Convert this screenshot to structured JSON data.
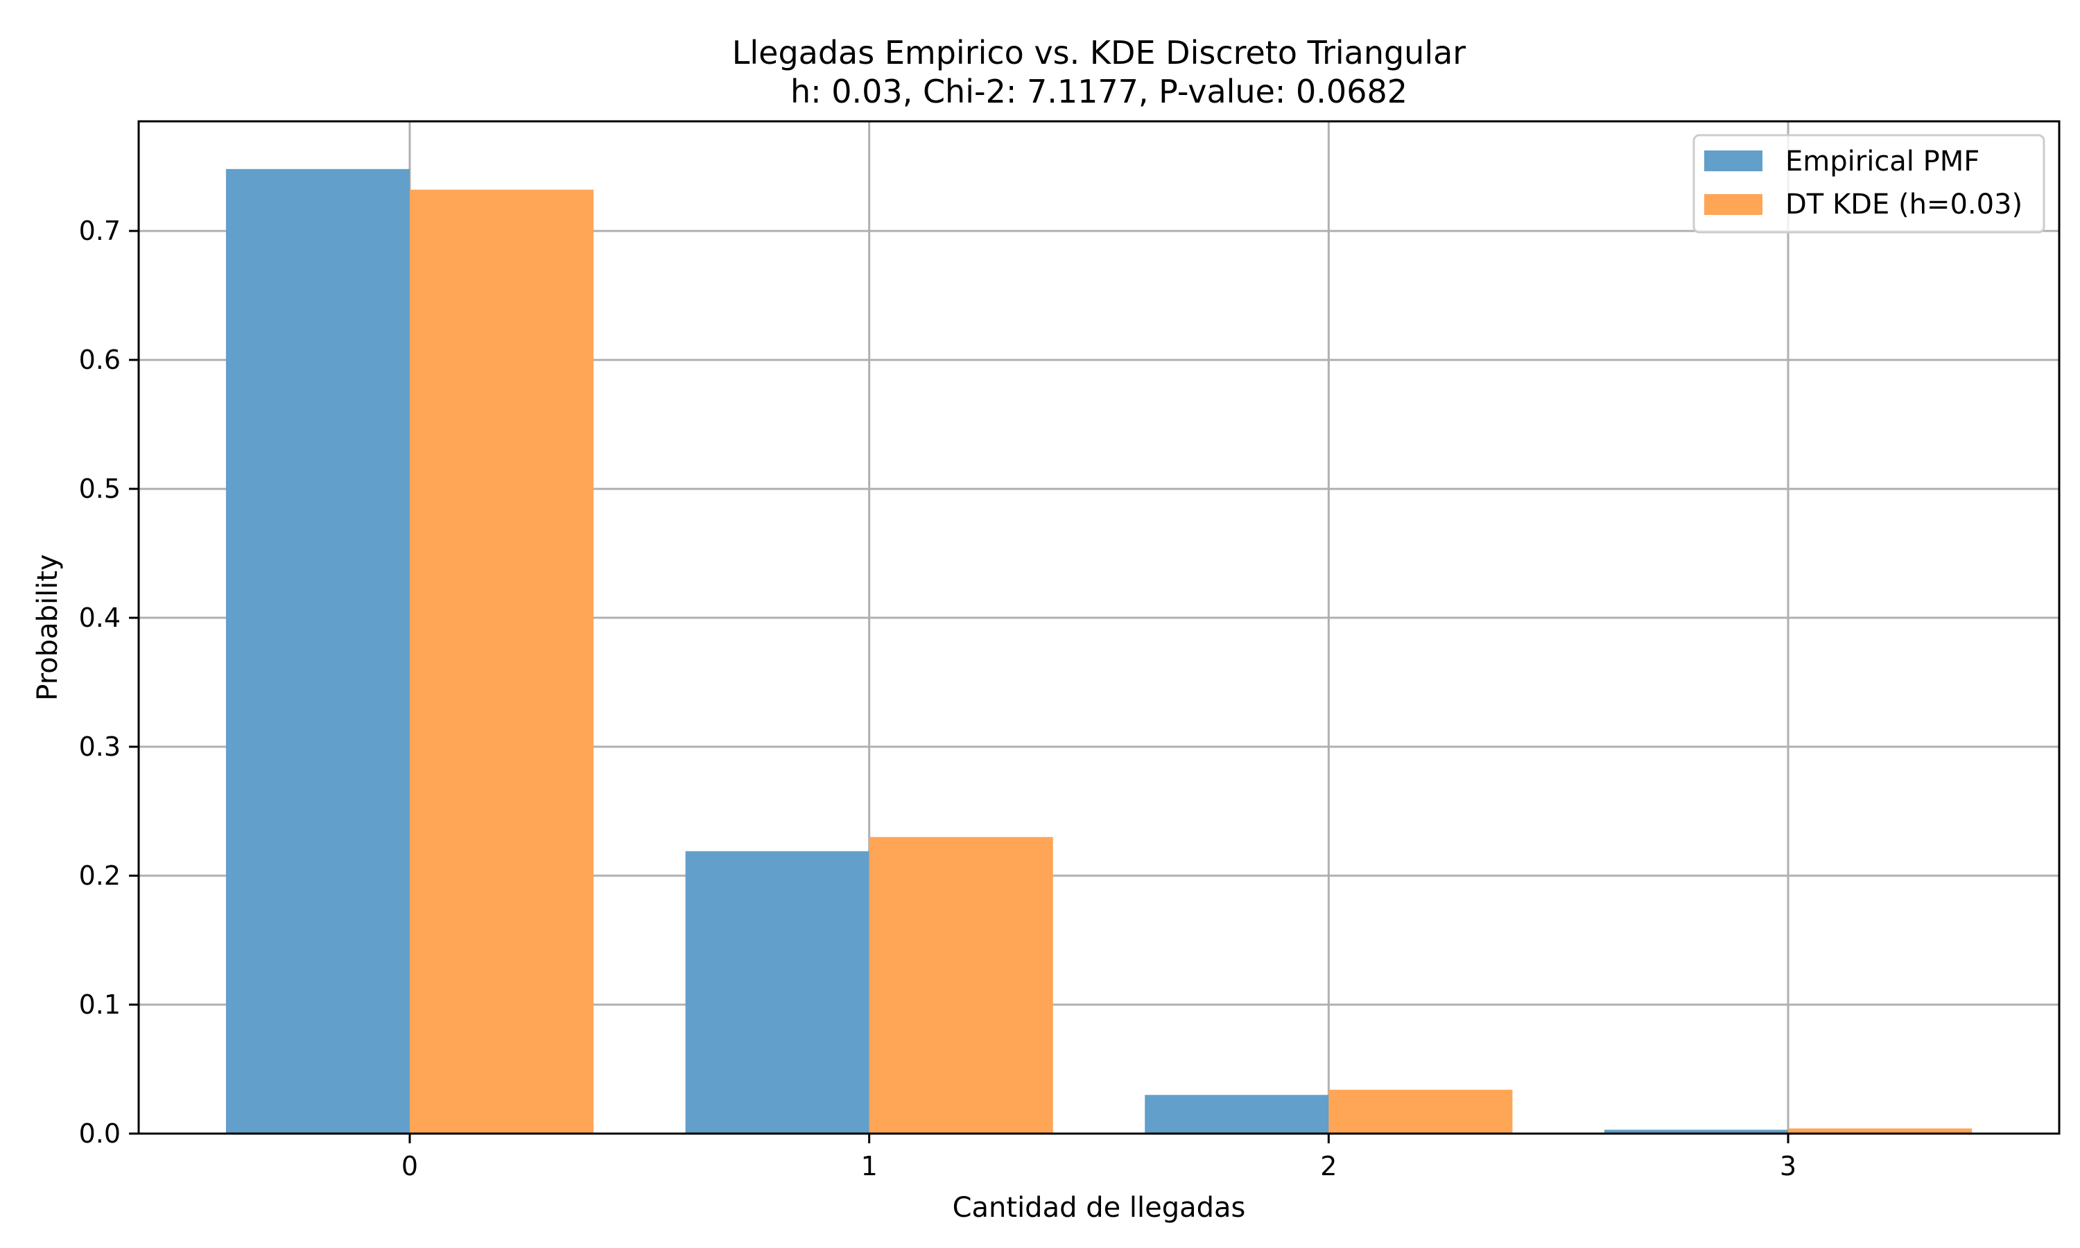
{
  "chart_data": {
    "type": "bar",
    "title": "Llegadas Empirico vs. KDE Discreto Triangular",
    "subtitle": "h: 0.03, Chi-2: 7.1177, P-value: 0.0682",
    "xlabel": "Cantidad de llegadas",
    "ylabel": "Probability",
    "categories": [
      "0",
      "1",
      "2",
      "3"
    ],
    "x": [
      0,
      1,
      2,
      3
    ],
    "xlim": [
      -0.59,
      3.59
    ],
    "ylim": [
      0,
      0.785
    ],
    "yticks": [
      0.0,
      0.1,
      0.2,
      0.3,
      0.4,
      0.5,
      0.6,
      0.7
    ],
    "ytick_labels": [
      "0.0",
      "0.1",
      "0.2",
      "0.3",
      "0.4",
      "0.5",
      "0.6",
      "0.7"
    ],
    "grid": true,
    "legend_position": "top-right",
    "series": [
      {
        "name": "Empirical PMF",
        "color": "#629fca",
        "values": [
          0.748,
          0.219,
          0.03,
          0.003
        ]
      },
      {
        "name": "DT KDE (h=0.03)",
        "color": "#ffa556",
        "values": [
          0.732,
          0.23,
          0.034,
          0.004
        ]
      }
    ]
  }
}
